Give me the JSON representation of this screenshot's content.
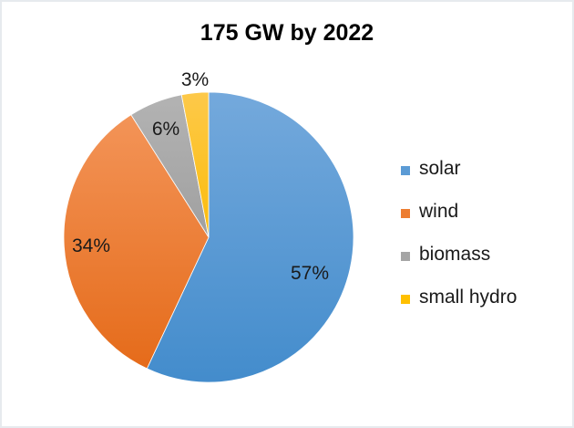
{
  "chart_data": {
    "type": "pie",
    "title": "175 GW by 2022",
    "categories": [
      "solar",
      "wind",
      "biomass",
      "small hydro"
    ],
    "values": [
      57,
      34,
      6,
      3
    ],
    "value_labels": [
      "57%",
      "34%",
      "6%",
      "3%"
    ],
    "colors": [
      "#4a90d2",
      "#ee7428",
      "#a5a5a5",
      "#fcc010"
    ],
    "legend_position": "right",
    "start_angle": "12 o'clock, clockwise"
  },
  "legend": {
    "items": [
      {
        "label": "solar",
        "color": "#5b9bd5"
      },
      {
        "label": "wind",
        "color": "#ed7d31"
      },
      {
        "label": "biomass",
        "color": "#a5a5a5"
      },
      {
        "label": "small hydro",
        "color": "#ffc000"
      }
    ]
  }
}
